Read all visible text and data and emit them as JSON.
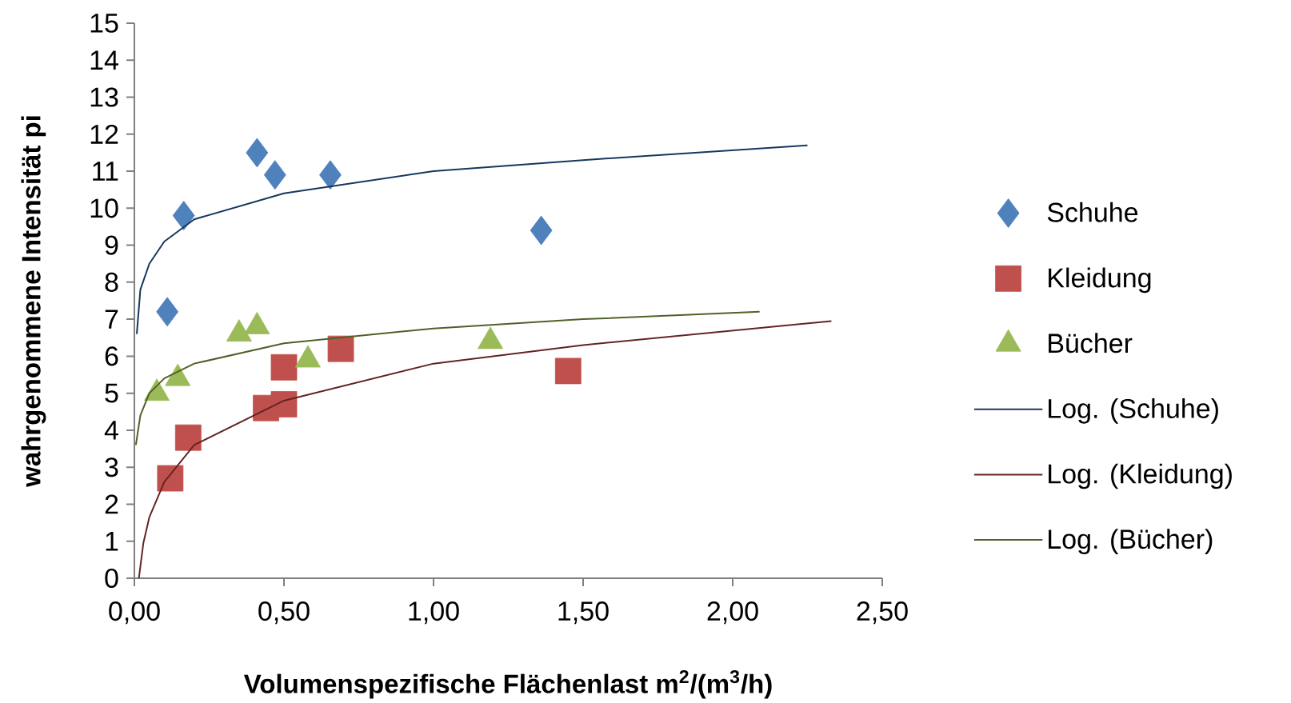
{
  "chart_data": {
    "type": "scatter",
    "xlabel": "Volumenspezifische Flächenlast m$^{2}$/(m$^{3}$/h)",
    "ylabel": "wahrgenommene Intensität pi",
    "xlim": [
      0,
      2.5
    ],
    "ylim": [
      0,
      15
    ],
    "xticks": [
      {
        "value": 0,
        "label": "0,00"
      },
      {
        "value": 0.5,
        "label": "0,50"
      },
      {
        "value": 1,
        "label": "1,00"
      },
      {
        "value": 1.5,
        "label": "1,50"
      },
      {
        "value": 2,
        "label": "2,00"
      },
      {
        "value": 2.5,
        "label": "2,50"
      }
    ],
    "yticks": [
      0,
      1,
      2,
      3,
      4,
      5,
      6,
      7,
      8,
      9,
      10,
      11,
      12,
      13,
      14,
      15
    ],
    "legend": "right",
    "series": [
      {
        "name": "Schuhe",
        "color": "#4f81bd",
        "marker": "diamond",
        "x": [
          0.11,
          0.165,
          0.41,
          0.47,
          0.655,
          1.36
        ],
        "values": [
          7.2,
          9.8,
          11.5,
          10.9,
          10.9,
          9.4
        ]
      },
      {
        "name": "Kleidung",
        "color": "#c0504d",
        "marker": "square",
        "x": [
          0.12,
          0.18,
          0.44,
          0.5,
          0.5,
          0.69,
          1.45
        ],
        "values": [
          2.7,
          3.8,
          4.6,
          4.7,
          5.7,
          6.2,
          5.6
        ]
      },
      {
        "name": "Bücher",
        "color": "#9bbb59",
        "marker": "triangle",
        "x": [
          0.075,
          0.145,
          0.35,
          0.41,
          0.58,
          1.19
        ],
        "values": [
          5.0,
          5.4,
          6.6,
          6.8,
          5.9,
          6.4
        ]
      },
      {
        "name": "Log. (Schuhe)",
        "type": "line",
        "color": "#17375e",
        "marker": "none",
        "x": [
          0.008,
          0.02,
          0.05,
          0.1,
          0.2,
          0.5,
          1,
          1.5,
          2.25
        ],
        "values": [
          6.6,
          7.8,
          8.5,
          9.1,
          9.7,
          10.4,
          11.0,
          11.3,
          11.7
        ]
      },
      {
        "name": "Log. (Kleidung)",
        "type": "line",
        "color": "#632523",
        "marker": "none",
        "x": [
          0.015,
          0.03,
          0.05,
          0.1,
          0.2,
          0.5,
          1,
          1.5,
          2.33
        ],
        "values": [
          0,
          0.95,
          1.65,
          2.6,
          3.6,
          4.8,
          5.8,
          6.3,
          6.95
        ]
      },
      {
        "name": "Log. (Bücher)",
        "type": "line",
        "color": "#4f6228",
        "marker": "none",
        "x": [
          0.005,
          0.02,
          0.05,
          0.1,
          0.2,
          0.5,
          1,
          1.5,
          2.09
        ],
        "values": [
          3.6,
          4.4,
          5.0,
          5.4,
          5.8,
          6.35,
          6.75,
          7.0,
          7.2
        ]
      }
    ]
  }
}
